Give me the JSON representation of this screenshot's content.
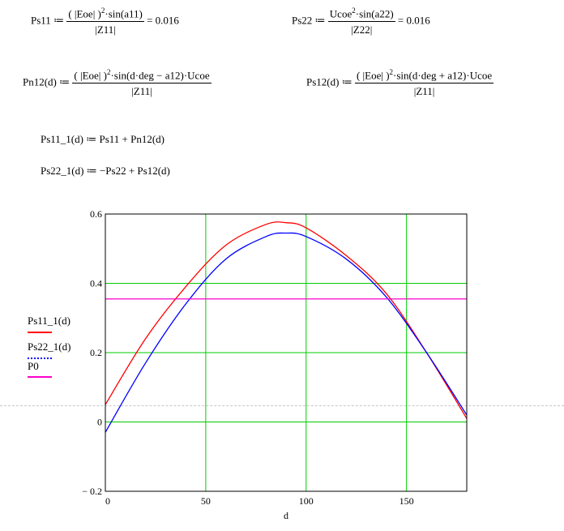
{
  "defs": {
    "ps11": {
      "lhs": "Ps11",
      "assign": "≔",
      "num_open": "( |Eoe| )",
      "num_exp": "2",
      "num_rest": "·sin(a11)",
      "den": "|Z11|",
      "result": "= 0.016"
    },
    "ps22": {
      "lhs": "Ps22",
      "assign": "≔",
      "num_base": "Ucoe",
      "num_exp": "2",
      "num_rest": "·sin(a22)",
      "den": "|Z22|",
      "result": "= 0.016"
    },
    "pn12": {
      "lhs": "Pn12(d)",
      "assign": "≔",
      "num_open": "( |Eoe| )",
      "num_exp": "2",
      "num_rest": "·sin(d·deg − a12)·Ucoe",
      "den": "|Z11|"
    },
    "ps12": {
      "lhs": "Ps12(d)",
      "assign": "≔",
      "num_open": "( |Eoe| )",
      "num_exp": "2",
      "num_rest": "·sin(d·deg + a12)·Ucoe",
      "den": "|Z11|"
    },
    "ps11_1": "Ps11_1(d) ≔ Ps11 + Pn12(d)",
    "ps22_1": "Ps22_1(d) ≔ −Ps22 + Ps12(d)"
  },
  "chart_data": {
    "type": "line",
    "xlabel": "d",
    "ylabel": "",
    "xlim": [
      0,
      180
    ],
    "ylim": [
      -0.2,
      0.6
    ],
    "x_ticks": [
      0,
      50,
      100,
      150
    ],
    "y_ticks": [
      -0.2,
      0,
      0.2,
      0.4,
      0.6
    ],
    "x_tick_labels": [
      "0",
      "50",
      "100",
      "150"
    ],
    "y_tick_labels": [
      "− 0.2",
      "0",
      "0.2",
      "0.4",
      "0.6"
    ],
    "grid": true,
    "grid_color": "#00cc00",
    "legend_position": "left",
    "series": [
      {
        "name": "Ps11_1(d)",
        "color": "#ff0000",
        "x": [
          0,
          20,
          40,
          60,
          80,
          90,
          100,
          120,
          140,
          160,
          180
        ],
        "values": [
          0.05,
          0.24,
          0.39,
          0.51,
          0.57,
          0.575,
          0.56,
          0.48,
          0.37,
          0.2,
          0.01
        ]
      },
      {
        "name": "Ps22_1(d)",
        "color": "#0000ff",
        "x": [
          0,
          20,
          40,
          60,
          80,
          90,
          100,
          120,
          140,
          160,
          180
        ],
        "values": [
          -0.03,
          0.17,
          0.34,
          0.47,
          0.535,
          0.545,
          0.535,
          0.47,
          0.36,
          0.2,
          0.02
        ]
      },
      {
        "name": "P0",
        "color": "#ff00cc",
        "x": [
          0,
          180
        ],
        "values": [
          0.355,
          0.355
        ]
      }
    ]
  }
}
